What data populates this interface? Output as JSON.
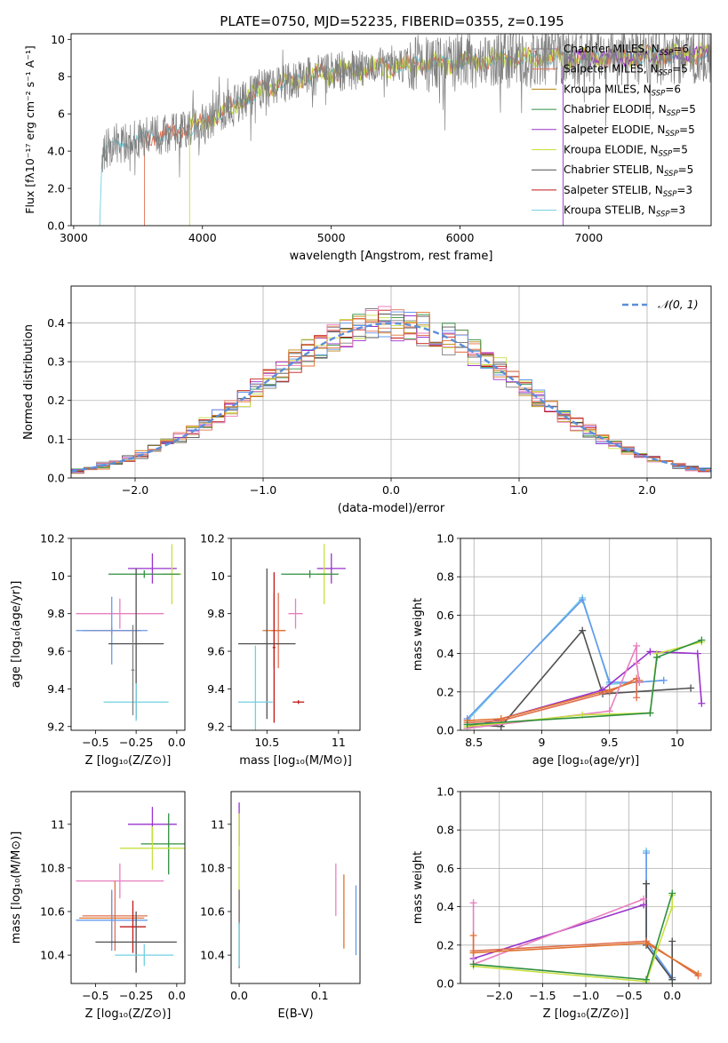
{
  "title": "PLATE=0750, MJD=52235, FIBERID=0355, z=0.195",
  "colors": [
    "#7f7f7f",
    "#e07050",
    "#b8860b",
    "#2f8f3f",
    "#9932cc",
    "#c8e040",
    "#505050",
    "#c01818",
    "#70d0e0",
    "#e87fbf",
    "#6699ee",
    "#e0722e"
  ],
  "chart_data": [
    {
      "id": "spectrum",
      "type": "line",
      "xlabel": "wavelength [Angstrom, rest frame]",
      "ylabel": "Flux [fλ10⁻¹⁷ erg cm⁻² s⁻¹ A⁻¹]",
      "xlim": [
        2980,
        7950
      ],
      "ylim": [
        0,
        10.3
      ],
      "xticks": [
        3000,
        4000,
        5000,
        6000,
        7000
      ],
      "yticks": [
        0,
        2,
        4,
        6,
        8,
        10
      ],
      "grid": false,
      "legend_placement": "right",
      "legend": [
        {
          "label": "Chabrier MILES, N",
          "sub": "SSP",
          "suffix": "=6",
          "color": "#7f7f7f"
        },
        {
          "label": "Salpeter MILES, N",
          "sub": "SSP",
          "suffix": "=5",
          "color": "#e07050"
        },
        {
          "label": "Kroupa MILES, N",
          "sub": "SSP",
          "suffix": "=6",
          "color": "#b8860b"
        },
        {
          "label": "Chabrier ELODIE, N",
          "sub": "SSP",
          "suffix": "=5",
          "color": "#2f8f3f"
        },
        {
          "label": "Salpeter ELODIE, N",
          "sub": "SSP",
          "suffix": "=5",
          "color": "#9932cc"
        },
        {
          "label": "Kroupa ELODIE, N",
          "sub": "SSP",
          "suffix": "=5",
          "color": "#c8e040"
        },
        {
          "label": "Chabrier STELIB, N",
          "sub": "SSP",
          "suffix": "=5",
          "color": "#505050"
        },
        {
          "label": "Salpeter STELIB, N",
          "sub": "SSP",
          "suffix": "=3",
          "color": "#c01818"
        },
        {
          "label": "Kroupa STELIB, N",
          "sub": "SSP",
          "suffix": "=3",
          "color": "#70d0e0"
        }
      ],
      "continuum": {
        "x": [
          3200,
          3220,
          3400,
          3600,
          3800,
          4000,
          4200,
          4500,
          4800,
          5000,
          5500,
          6000,
          6500,
          7000,
          7500,
          7950
        ],
        "y": [
          0,
          4.0,
          4.5,
          4.8,
          5.0,
          5.5,
          6.3,
          7.4,
          8.0,
          8.2,
          8.6,
          8.8,
          9.0,
          9.0,
          9.1,
          9.2
        ]
      },
      "model_starts": [
        3200,
        3550,
        3900,
        6800
      ]
    },
    {
      "id": "residuals",
      "type": "histogram",
      "xlabel": "(data-model)/error",
      "ylabel": "Normed distribution",
      "xlim": [
        -2.5,
        2.5
      ],
      "ylim": [
        0,
        0.495
      ],
      "xticks": [
        -2,
        -1,
        0,
        1,
        2
      ],
      "yticks": [
        0.0,
        0.1,
        0.2,
        0.3,
        0.4
      ],
      "grid": true,
      "bin_width": 0.1,
      "legend_placement": "top-right",
      "gaussian_label": "𝒩(0, 1)",
      "gaussian_color": "#5b8fd9"
    },
    {
      "id": "age-vs-Z",
      "type": "errorbar",
      "xlabel": "Z [log₁₀(Z/Z⊙)]",
      "ylabel": "age  [log₁₀(age/yr)]",
      "xlim": [
        -0.65,
        0.05
      ],
      "ylim": [
        9.18,
        10.2
      ],
      "xticks": [
        -0.5,
        -0.25,
        0.0
      ],
      "yticks": [
        9.2,
        9.4,
        9.6,
        9.8,
        10.0,
        10.2
      ],
      "grid": false
    },
    {
      "id": "age-vs-mass",
      "type": "errorbar",
      "xlabel": "mass [log₁₀(M/M⊙)]",
      "ylabel": "",
      "xlim": [
        10.25,
        11.15
      ],
      "ylim": [
        9.18,
        10.2
      ],
      "xticks": [
        10.5,
        11.0
      ],
      "yticks": [
        9.2,
        9.4,
        9.6,
        9.8,
        10.0,
        10.2
      ],
      "grid": false
    },
    {
      "id": "weight-vs-age",
      "type": "line",
      "xlabel": "age  [log₁₀(age/yr)]",
      "ylabel": "mass weight",
      "xlim": [
        8.4,
        10.25
      ],
      "ylim": [
        0,
        1.0
      ],
      "xticks": [
        8.5,
        9.0,
        9.5,
        10.0
      ],
      "yticks": [
        0.0,
        0.2,
        0.4,
        0.6,
        0.8,
        1.0
      ],
      "grid": true,
      "series": [
        {
          "color": "#70d0e0",
          "x": [
            8.45,
            9.3,
            9.5,
            9.7,
            9.9
          ],
          "y": [
            0.05,
            0.69,
            0.24,
            0.25,
            0.26
          ]
        },
        {
          "color": "#6699ee",
          "x": [
            8.45,
            9.3,
            9.5,
            9.7,
            9.9
          ],
          "y": [
            0.06,
            0.68,
            0.25,
            0.25,
            0.26
          ]
        },
        {
          "color": "#505050",
          "x": [
            8.45,
            8.7,
            9.3,
            9.45,
            10.1
          ],
          "y": [
            0.03,
            0.02,
            0.52,
            0.19,
            0.22
          ]
        },
        {
          "color": "#9932cc",
          "x": [
            8.45,
            9.45,
            9.8,
            10.15,
            10.18
          ],
          "y": [
            0.01,
            0.21,
            0.41,
            0.4,
            0.14
          ]
        },
        {
          "color": "#e07050",
          "x": [
            8.45,
            8.7,
            9.5,
            9.7,
            9.7
          ],
          "y": [
            0.04,
            0.05,
            0.2,
            0.27,
            0.17
          ]
        },
        {
          "color": "#e0722e",
          "x": [
            8.45,
            8.7,
            9.5,
            9.72,
            9.72
          ],
          "y": [
            0.05,
            0.06,
            0.21,
            0.26,
            0.25
          ]
        },
        {
          "color": "#e87fbf",
          "x": [
            8.45,
            9.5,
            9.7,
            9.7,
            9.72
          ],
          "y": [
            0.01,
            0.1,
            0.44,
            0.35,
            0.25
          ]
        },
        {
          "color": "#c8e040",
          "x": [
            8.45,
            9.3,
            9.8,
            9.85,
            10.18
          ],
          "y": [
            0.02,
            0.08,
            0.09,
            0.4,
            0.46
          ]
        },
        {
          "color": "#2f8f3f",
          "x": [
            8.45,
            9.8,
            9.85,
            10.18
          ],
          "y": [
            0.03,
            0.09,
            0.38,
            0.47
          ]
        }
      ]
    },
    {
      "id": "mass-vs-Z",
      "type": "errorbar",
      "xlabel": "Z [log₁₀(Z/Z⊙)]",
      "ylabel": "mass [log₁₀(M/M⊙)]",
      "xlim": [
        -0.65,
        0.05
      ],
      "ylim": [
        10.27,
        11.15
      ],
      "xticks": [
        -0.5,
        -0.25,
        0.0
      ],
      "yticks": [
        10.4,
        10.6,
        10.8,
        11.0
      ],
      "grid": false
    },
    {
      "id": "mass-vs-EBV",
      "type": "errorbar",
      "xlabel": "E(B-V)",
      "ylabel": "",
      "xlim": [
        -0.01,
        0.15
      ],
      "ylim": [
        10.27,
        11.15
      ],
      "xticks": [
        0.0,
        0.1
      ],
      "yticks": [
        10.4,
        10.6,
        10.8,
        11.0
      ],
      "grid": false
    },
    {
      "id": "weight-vs-Z",
      "type": "line",
      "xlabel": "Z [log₁₀(Z/Z⊙)]",
      "ylabel": "mass weight",
      "xlim": [
        -2.45,
        0.45
      ],
      "ylim": [
        0,
        1.0
      ],
      "xticks": [
        -2.0,
        -1.5,
        -1.0,
        -0.5,
        0.0
      ],
      "yticks": [
        0.0,
        0.2,
        0.4,
        0.6,
        0.8,
        1.0
      ],
      "grid": true,
      "series": [
        {
          "color": "#70d0e0",
          "x": [
            -0.3,
            -0.3,
            0.0,
            0.0
          ],
          "y": [
            0.69,
            0.2,
            0.03,
            0.02
          ]
        },
        {
          "color": "#6699ee",
          "x": [
            -0.3,
            -0.3,
            0.0
          ],
          "y": [
            0.68,
            0.22,
            0.03
          ]
        },
        {
          "color": "#505050",
          "x": [
            -0.3,
            -0.3,
            0.0,
            0.0
          ],
          "y": [
            0.52,
            0.2,
            0.02,
            0.22
          ]
        },
        {
          "color": "#9932cc",
          "x": [
            -2.3,
            -0.33
          ],
          "y": [
            0.13,
            0.41
          ]
        },
        {
          "color": "#e87fbf",
          "x": [
            -2.3,
            -2.3,
            -0.33
          ],
          "y": [
            0.42,
            0.1,
            0.44
          ]
        },
        {
          "color": "#e07050",
          "x": [
            -2.3,
            -0.3,
            0.3
          ],
          "y": [
            0.17,
            0.22,
            0.04
          ]
        },
        {
          "color": "#e0722e",
          "x": [
            -2.3,
            -2.3,
            -0.3,
            0.3
          ],
          "y": [
            0.25,
            0.16,
            0.21,
            0.05
          ]
        },
        {
          "color": "#c8e040",
          "x": [
            -2.3,
            -0.3,
            0.0,
            0.0
          ],
          "y": [
            0.09,
            0.01,
            0.4,
            0.46
          ]
        },
        {
          "color": "#2f8f3f",
          "x": [
            -2.3,
            -0.3,
            0.0
          ],
          "y": [
            0.1,
            0.02,
            0.47
          ]
        }
      ]
    }
  ]
}
